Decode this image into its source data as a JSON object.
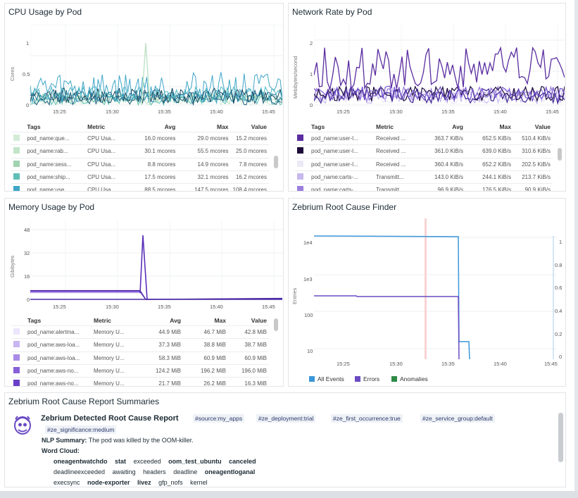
{
  "cpu": {
    "title": "CPU Usage by Pod",
    "y_axis_label": "Cores",
    "y_ticks": [
      "1",
      "0.5",
      "0"
    ],
    "x_ticks": [
      "15:25",
      "15:30",
      "15:35",
      "15:40",
      "15:45"
    ],
    "legend_headers": {
      "tags": "Tags",
      "metric": "Metric",
      "avg": "Avg",
      "max": "Max",
      "value": "Value"
    },
    "legend_rows": [
      {
        "color": "#d3ecd7",
        "tags": "pod_name:que...",
        "metric": "CPU Usa...",
        "avg": "16.0 mcores",
        "max": "29.0 mcores",
        "value": "15.2 mcores"
      },
      {
        "color": "#c2e4c9",
        "tags": "pod_name:rab...",
        "metric": "CPU Usa...",
        "avg": "30.1 mcores",
        "max": "55.5 mcores",
        "value": "25.0 mcores"
      },
      {
        "color": "#9fd3b0",
        "tags": "pod_name:sess...",
        "metric": "CPU Usa...",
        "avg": "8.8 mcores",
        "max": "14.9 mcores",
        "value": "7.8 mcores"
      },
      {
        "color": "#5fbfb6",
        "tags": "pod_name:ship...",
        "metric": "CPU Usa...",
        "avg": "17.5 mcores",
        "max": "32.1 mcores",
        "value": "16.2 mcores"
      },
      {
        "color": "#3ea6c7",
        "tags": "pod_name:use...",
        "metric": "CPU Usa...",
        "avg": "88.5 mcores",
        "max": "147.5 mcores",
        "value": "108.4 mcores"
      }
    ]
  },
  "network": {
    "title": "Network Rate by Pod",
    "y_axis_label": "Mebibytes/second",
    "y_ticks": [
      "2",
      "1",
      "0"
    ],
    "x_ticks": [
      "15:25",
      "15:30",
      "15:35",
      "15:40",
      "15:45"
    ],
    "legend_headers": {
      "tags": "Tags",
      "metric": "Metric",
      "avg": "Avg",
      "max": "Max",
      "value": "Value"
    },
    "legend_rows": [
      {
        "color": "#5a2ca0",
        "tags": "pod_name:user-l...",
        "metric": "Received ...",
        "avg": "363.7 KiB/s",
        "max": "652.5 KiB/s",
        "value": "510.4 KiB/s"
      },
      {
        "color": "#1c0b3a",
        "tags": "pod_name:user-l...",
        "metric": "Received ...",
        "avg": "361.0 KiB/s",
        "max": "639.0 KiB/s",
        "value": "310.6 KiB/s"
      },
      {
        "color": "#ece9f7",
        "tags": "pod_name:user-l...",
        "metric": "Received ...",
        "avg": "360.4 KiB/s",
        "max": "652.2 KiB/s",
        "value": "202.5 KiB/s"
      },
      {
        "color": "#c7b9ee",
        "tags": "pod_name:carts-...",
        "metric": "Transmitt...",
        "avg": "143.0 KiB/s",
        "max": "244.1 KiB/s",
        "value": "213.7 KiB/s"
      },
      {
        "color": "#9b7fdc",
        "tags": "pod_name:carts-...",
        "metric": "Transmitt...",
        "avg": "96.9 KiB/s",
        "max": "176.5 KiB/s",
        "value": "90.9 KiB/s"
      }
    ]
  },
  "memory": {
    "title": "Memory Usage by Pod",
    "y_axis_label": "Gibibytes",
    "y_ticks": [
      "48",
      "32",
      "16",
      "0"
    ],
    "x_ticks": [
      "15:25",
      "15:30",
      "15:35",
      "15:40",
      "15:45"
    ],
    "legend_headers": {
      "tags": "Tags",
      "metric": "Metric",
      "avg": "Avg",
      "max": "Max",
      "value": "Value"
    },
    "legend_rows": [
      {
        "color": "#ece6fb",
        "tags": "pod_name:alertma...",
        "metric": "Memory U...",
        "avg": "44.9 MiB",
        "max": "46.7 MiB",
        "value": "42.8 MiB"
      },
      {
        "color": "#c9b5f1",
        "tags": "pod_name:aws-loa...",
        "metric": "Memory U...",
        "avg": "37.3 MiB",
        "max": "38.8 MiB",
        "value": "38.7 MiB"
      },
      {
        "color": "#a78be6",
        "tags": "pod_name:aws-loa...",
        "metric": "Memory U...",
        "avg": "58.3 MiB",
        "max": "60.9 MiB",
        "value": "60.9 MiB"
      },
      {
        "color": "#8660d8",
        "tags": "pod_name:aws-no...",
        "metric": "Memory U...",
        "avg": "124.2 MiB",
        "max": "196.2 MiB",
        "value": "196.0 MiB"
      },
      {
        "color": "#6a40c8",
        "tags": "pod_name:aws-no...",
        "metric": "Memory U...",
        "avg": "21.7 MiB",
        "max": "26.2 MiB",
        "value": "16.3 MiB"
      }
    ]
  },
  "zebrium_finder": {
    "title": "Zebrium Root Cause Finder",
    "y_axis_label": "Entries",
    "y_ticks": [
      "1e4",
      "1e3",
      "100",
      "10"
    ],
    "y_right_ticks": [
      "1",
      "0.8",
      "0.6",
      "0.4",
      "0.2",
      "0"
    ],
    "x_ticks": [
      "15:25",
      "15:30",
      "15:35",
      "15:40",
      "15:45"
    ],
    "legend": [
      {
        "label": "All Events",
        "color": "#3b97d9"
      },
      {
        "label": "Errors",
        "color": "#6a4bc4"
      },
      {
        "label": "Anomalies",
        "color": "#2e8b46"
      }
    ]
  },
  "summaries": {
    "title": "Zebrium Root Cause Report Summaries",
    "report_title": "Zebrium Detected Root Cause Report",
    "tags": [
      "#source:my_apps",
      "#ze_deployment:trial",
      "#ze_first_occurrence:true",
      "#ze_service_group:default",
      "#ze_significance:medium"
    ],
    "nlp_label": "NLP Summary:",
    "nlp_text": "The pod was killed by the OOM-killer.",
    "word_cloud_label": "Word Cloud:",
    "words": [
      {
        "w": "oneagentwatchdo",
        "bold": true
      },
      {
        "w": "stat",
        "bold": true
      },
      {
        "w": "exceeded",
        "bold": false
      },
      {
        "w": "oom_test_ubuntu",
        "bold": true
      },
      {
        "w": "canceled",
        "bold": true
      },
      {
        "w": "deadlineexceeded",
        "bold": false
      },
      {
        "w": "awaiting",
        "bold": false
      },
      {
        "w": "headers",
        "bold": false
      },
      {
        "w": "deadline",
        "bold": false
      },
      {
        "w": "oneagentloganal",
        "bold": true
      },
      {
        "w": "execsync",
        "bold": false
      },
      {
        "w": "node-exporter",
        "bold": true
      },
      {
        "w": "livez",
        "bold": true
      },
      {
        "w": "gfp_nofs",
        "bold": false
      },
      {
        "w": "kernel",
        "bold": false
      }
    ]
  }
}
